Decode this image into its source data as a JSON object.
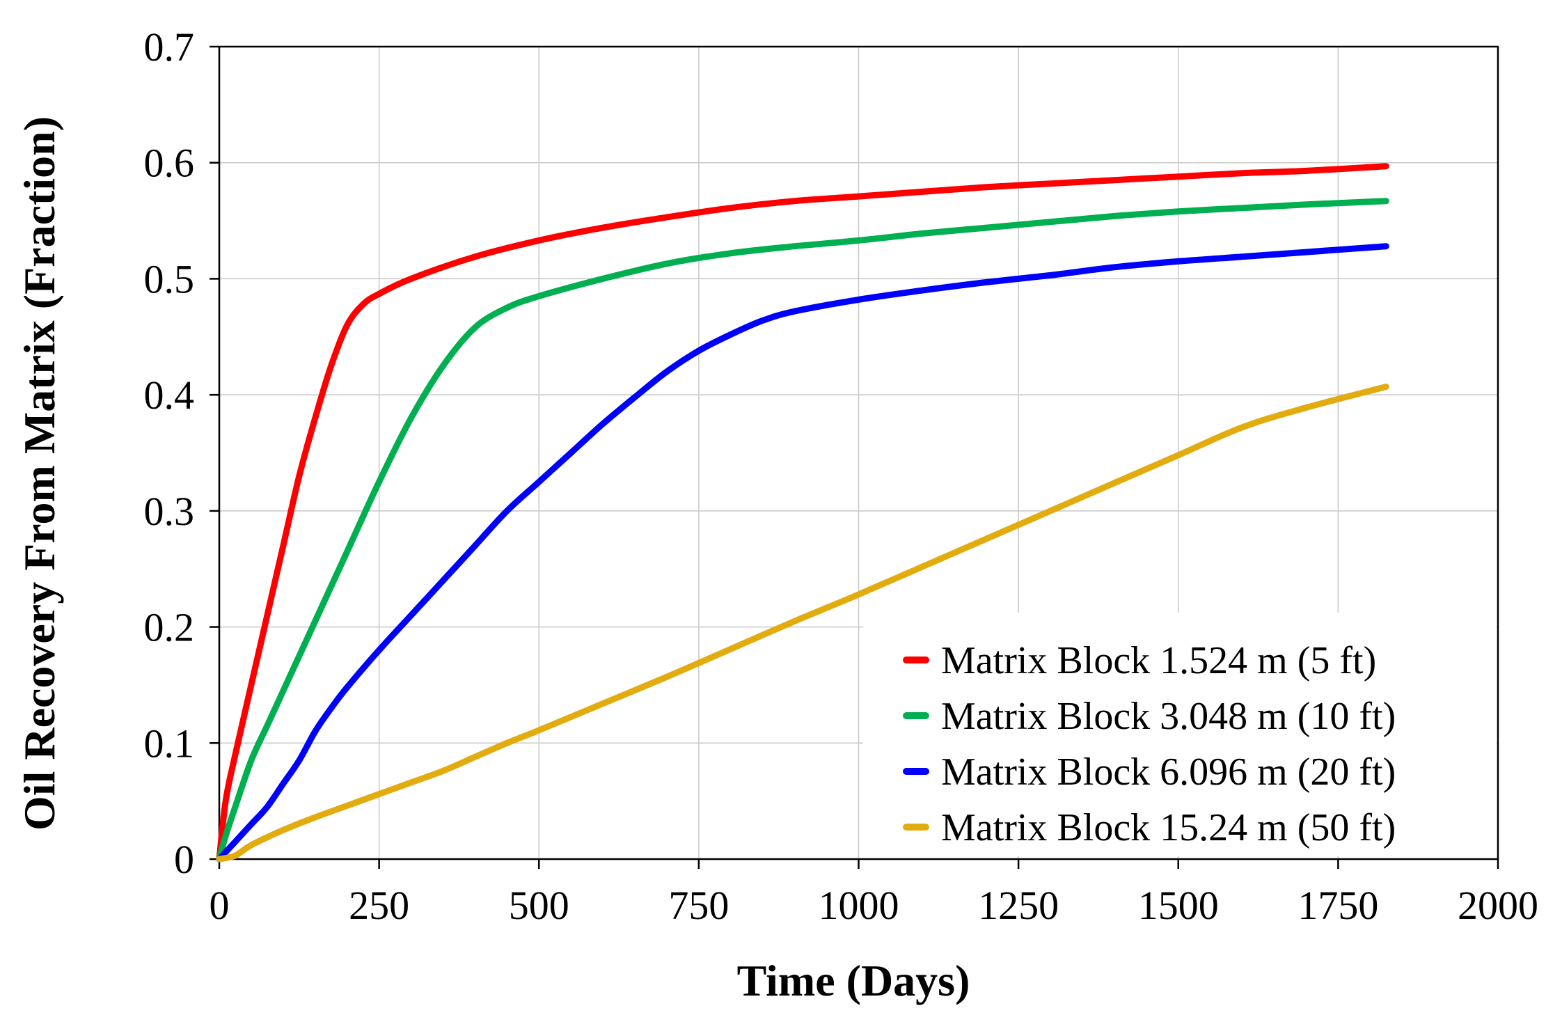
{
  "chart_data": {
    "type": "line",
    "title": "",
    "xlabel": "Time (Days)",
    "ylabel": "Oil Recovery From Matrix (Fraction)",
    "xlim": [
      0,
      2000
    ],
    "ylim": [
      0,
      0.7
    ],
    "xticks": [
      0,
      250,
      500,
      750,
      1000,
      1250,
      1500,
      1750,
      2000
    ],
    "yticks": [
      0,
      0.1,
      0.2,
      0.3,
      0.4,
      0.5,
      0.6,
      0.7
    ],
    "xtick_labels": [
      "0",
      "250",
      "500",
      "750",
      "1000",
      "1250",
      "1500",
      "1750",
      "2000"
    ],
    "ytick_labels": [
      "0",
      "0.1",
      "0.2",
      "0.3",
      "0.4",
      "0.5",
      "0.6",
      "0.7"
    ],
    "grid": true,
    "legend_position": "bottom-right",
    "series": [
      {
        "name": "Matrix Block 1.524 m (5 ft)",
        "color": "#ff0000",
        "points": [
          [
            0,
            0
          ],
          [
            10,
            0.05
          ],
          [
            25,
            0.09
          ],
          [
            50,
            0.15
          ],
          [
            75,
            0.21
          ],
          [
            100,
            0.27
          ],
          [
            125,
            0.33
          ],
          [
            150,
            0.38
          ],
          [
            175,
            0.425
          ],
          [
            200,
            0.46
          ],
          [
            225,
            0.478
          ],
          [
            250,
            0.487
          ],
          [
            300,
            0.5
          ],
          [
            400,
            0.519
          ],
          [
            500,
            0.533
          ],
          [
            600,
            0.544
          ],
          [
            700,
            0.553
          ],
          [
            800,
            0.561
          ],
          [
            900,
            0.567
          ],
          [
            1000,
            0.571
          ],
          [
            1100,
            0.575
          ],
          [
            1200,
            0.579
          ],
          [
            1300,
            0.582
          ],
          [
            1400,
            0.585
          ],
          [
            1500,
            0.588
          ],
          [
            1600,
            0.591
          ],
          [
            1700,
            0.593
          ],
          [
            1825,
            0.597
          ]
        ]
      },
      {
        "name": "Matrix Block 3.048 m (10 ft)",
        "color": "#00b050",
        "points": [
          [
            0,
            0
          ],
          [
            10,
            0.02
          ],
          [
            25,
            0.045
          ],
          [
            50,
            0.085
          ],
          [
            75,
            0.115
          ],
          [
            100,
            0.145
          ],
          [
            150,
            0.205
          ],
          [
            200,
            0.265
          ],
          [
            250,
            0.325
          ],
          [
            300,
            0.38
          ],
          [
            350,
            0.425
          ],
          [
            400,
            0.458
          ],
          [
            450,
            0.475
          ],
          [
            500,
            0.485
          ],
          [
            600,
            0.5
          ],
          [
            700,
            0.513
          ],
          [
            800,
            0.522
          ],
          [
            900,
            0.528
          ],
          [
            1000,
            0.533
          ],
          [
            1100,
            0.539
          ],
          [
            1200,
            0.544
          ],
          [
            1300,
            0.549
          ],
          [
            1400,
            0.554
          ],
          [
            1500,
            0.558
          ],
          [
            1600,
            0.561
          ],
          [
            1700,
            0.564
          ],
          [
            1825,
            0.567
          ]
        ]
      },
      {
        "name": "Matrix Block 6.096 m (20 ft)",
        "color": "#0000ff",
        "points": [
          [
            0,
            0
          ],
          [
            25,
            0.015
          ],
          [
            50,
            0.03
          ],
          [
            75,
            0.045
          ],
          [
            100,
            0.065
          ],
          [
            125,
            0.085
          ],
          [
            150,
            0.11
          ],
          [
            175,
            0.13
          ],
          [
            200,
            0.148
          ],
          [
            250,
            0.18
          ],
          [
            300,
            0.21
          ],
          [
            350,
            0.24
          ],
          [
            400,
            0.27
          ],
          [
            450,
            0.3
          ],
          [
            500,
            0.325
          ],
          [
            550,
            0.35
          ],
          [
            600,
            0.375
          ],
          [
            650,
            0.398
          ],
          [
            700,
            0.42
          ],
          [
            750,
            0.438
          ],
          [
            800,
            0.452
          ],
          [
            850,
            0.464
          ],
          [
            900,
            0.472
          ],
          [
            1000,
            0.482
          ],
          [
            1100,
            0.49
          ],
          [
            1200,
            0.497
          ],
          [
            1300,
            0.503
          ],
          [
            1400,
            0.51
          ],
          [
            1500,
            0.515
          ],
          [
            1600,
            0.519
          ],
          [
            1700,
            0.523
          ],
          [
            1825,
            0.528
          ]
        ]
      },
      {
        "name": "Matrix Block 15.24 m (50 ft)",
        "color": "#e2ac0f",
        "points": [
          [
            0,
            0
          ],
          [
            25,
            0.003
          ],
          [
            50,
            0.012
          ],
          [
            100,
            0.025
          ],
          [
            150,
            0.036
          ],
          [
            200,
            0.046
          ],
          [
            250,
            0.056
          ],
          [
            300,
            0.066
          ],
          [
            350,
            0.076
          ],
          [
            400,
            0.088
          ],
          [
            450,
            0.1
          ],
          [
            500,
            0.111
          ],
          [
            600,
            0.134
          ],
          [
            700,
            0.157
          ],
          [
            800,
            0.181
          ],
          [
            900,
            0.205
          ],
          [
            1000,
            0.228
          ],
          [
            1100,
            0.252
          ],
          [
            1200,
            0.276
          ],
          [
            1300,
            0.3
          ],
          [
            1400,
            0.324
          ],
          [
            1500,
            0.348
          ],
          [
            1600,
            0.372
          ],
          [
            1700,
            0.389
          ],
          [
            1825,
            0.407
          ]
        ]
      }
    ]
  }
}
